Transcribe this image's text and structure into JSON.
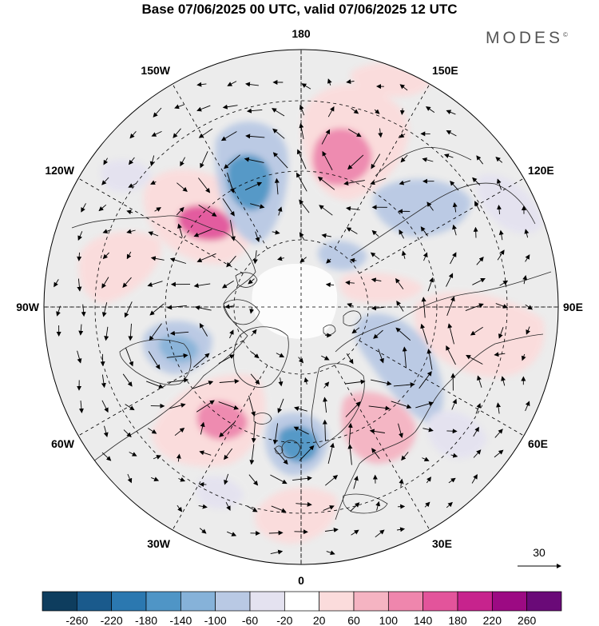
{
  "title": "Base 07/06/2025 00 UTC, valid 07/06/2025 12 UTC",
  "brand": "MODES",
  "brand_mark": "©",
  "meridian_labels": [
    {
      "text": "180",
      "lon": 180
    },
    {
      "text": "150E",
      "lon": 150
    },
    {
      "text": "120E",
      "lon": 120
    },
    {
      "text": "90E",
      "lon": 90
    },
    {
      "text": "60E",
      "lon": 60
    },
    {
      "text": "30E",
      "lon": 30
    },
    {
      "text": "0",
      "lon": 0
    },
    {
      "text": "30W",
      "lon": -30
    },
    {
      "text": "60W",
      "lon": -60
    },
    {
      "text": "90W",
      "lon": -90
    },
    {
      "text": "120W",
      "lon": -120
    },
    {
      "text": "150W",
      "lon": -150
    }
  ],
  "reference_vector": {
    "label": "30"
  },
  "colorbar": {
    "ticks": [
      "-260",
      "-220",
      "-180",
      "-140",
      "-100",
      "-60",
      "-20",
      "20",
      "60",
      "100",
      "140",
      "180",
      "220",
      "260"
    ],
    "colors": [
      "#0e3d5e",
      "#1a5a8c",
      "#2b78b0",
      "#4f95c6",
      "#86b2d9",
      "#b9c9e4",
      "#e4e2f0",
      "#ffffff",
      "#fbdcdc",
      "#f5b4c2",
      "#ef86ad",
      "#e3549b",
      "#c7238d",
      "#9c0a83",
      "#6a0a78"
    ]
  },
  "field_colors": {
    "background": "#ececec",
    "light_pink": "#fbdcdc",
    "pink": "#f5b4c2",
    "mid_pink": "#ef86ad",
    "deep_pink": "#e3549b",
    "light_blue": "#b9c9e4",
    "blue": "#86b2d9",
    "mid_blue": "#4f95c6",
    "lavender": "#e4e2f0"
  }
}
